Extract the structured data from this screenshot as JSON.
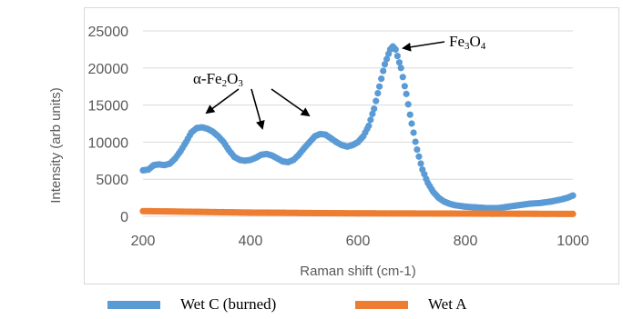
{
  "chart_data": {
    "type": "scatter",
    "title": "",
    "xlabel": "Raman shift (cm-1)",
    "ylabel": "Intensity (arb units)",
    "xlim": [
      200,
      1000
    ],
    "ylim": [
      0,
      25000
    ],
    "xticks": [
      "200",
      "400",
      "600",
      "800",
      "1000"
    ],
    "yticks": [
      "0",
      "5000",
      "10000",
      "15000",
      "20000",
      "25000"
    ],
    "grid": "horizontal",
    "legend": "bottom",
    "series": [
      {
        "name": "Wet C (burned)",
        "color": "#5b9bd5",
        "points": [
          [
            200,
            6200
          ],
          [
            210,
            6300
          ],
          [
            220,
            6900
          ],
          [
            230,
            7000
          ],
          [
            240,
            6900
          ],
          [
            250,
            7100
          ],
          [
            260,
            7800
          ],
          [
            270,
            8800
          ],
          [
            280,
            10000
          ],
          [
            290,
            11300
          ],
          [
            300,
            11900
          ],
          [
            310,
            12000
          ],
          [
            320,
            11800
          ],
          [
            330,
            11400
          ],
          [
            340,
            10800
          ],
          [
            350,
            10000
          ],
          [
            360,
            8900
          ],
          [
            370,
            8000
          ],
          [
            380,
            7600
          ],
          [
            390,
            7500
          ],
          [
            400,
            7600
          ],
          [
            410,
            7900
          ],
          [
            420,
            8300
          ],
          [
            430,
            8400
          ],
          [
            440,
            8200
          ],
          [
            450,
            7800
          ],
          [
            460,
            7400
          ],
          [
            470,
            7300
          ],
          [
            480,
            7600
          ],
          [
            490,
            8300
          ],
          [
            500,
            9200
          ],
          [
            510,
            10000
          ],
          [
            520,
            10800
          ],
          [
            530,
            11100
          ],
          [
            540,
            11000
          ],
          [
            550,
            10500
          ],
          [
            560,
            10000
          ],
          [
            570,
            9600
          ],
          [
            580,
            9400
          ],
          [
            590,
            9600
          ],
          [
            600,
            10000
          ],
          [
            610,
            10800
          ],
          [
            620,
            12200
          ],
          [
            630,
            14500
          ],
          [
            640,
            17500
          ],
          [
            650,
            20500
          ],
          [
            660,
            22500
          ],
          [
            665,
            22900
          ],
          [
            670,
            22500
          ],
          [
            680,
            20000
          ],
          [
            690,
            16500
          ],
          [
            700,
            12500
          ],
          [
            710,
            9000
          ],
          [
            720,
            6300
          ],
          [
            730,
            4500
          ],
          [
            740,
            3300
          ],
          [
            750,
            2500
          ],
          [
            760,
            2000
          ],
          [
            770,
            1700
          ],
          [
            780,
            1500
          ],
          [
            800,
            1300
          ],
          [
            820,
            1200
          ],
          [
            840,
            1100
          ],
          [
            860,
            1100
          ],
          [
            880,
            1300
          ],
          [
            900,
            1500
          ],
          [
            920,
            1700
          ],
          [
            940,
            1800
          ],
          [
            960,
            2000
          ],
          [
            980,
            2300
          ],
          [
            990,
            2500
          ],
          [
            1000,
            2800
          ]
        ]
      },
      {
        "name": "Wet A",
        "color": "#ed7d31",
        "points": [
          [
            200,
            700
          ],
          [
            250,
            650
          ],
          [
            300,
            600
          ],
          [
            350,
            550
          ],
          [
            400,
            500
          ],
          [
            450,
            480
          ],
          [
            500,
            450
          ],
          [
            550,
            420
          ],
          [
            600,
            400
          ],
          [
            650,
            390
          ],
          [
            700,
            380
          ],
          [
            750,
            370
          ],
          [
            800,
            360
          ],
          [
            850,
            350
          ],
          [
            900,
            340
          ],
          [
            950,
            330
          ],
          [
            1000,
            320
          ]
        ]
      }
    ],
    "annotations": [
      {
        "label_html": "α-Fe<tspan font-size='11' dy='3'>2</tspan><tspan dy='-3'>O</tspan><tspan font-size='11' dy='3'>3</tspan>",
        "text": "α-Fe2O3"
      },
      {
        "text": "Fe3O4"
      }
    ]
  }
}
